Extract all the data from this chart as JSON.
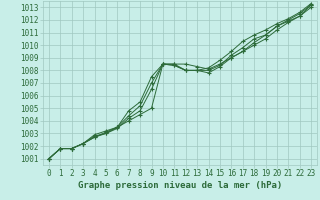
{
  "title": "Graphe pression niveau de la mer (hPa)",
  "bg_color": "#c8eee8",
  "grid_color": "#a0c8c0",
  "line_color": "#2d6b3a",
  "ylim": [
    1000.5,
    1013.5
  ],
  "xlim": [
    -0.5,
    23.5
  ],
  "yticks": [
    1001,
    1002,
    1003,
    1004,
    1005,
    1006,
    1007,
    1008,
    1009,
    1010,
    1011,
    1012,
    1013
  ],
  "xticks": [
    0,
    1,
    2,
    3,
    4,
    5,
    6,
    7,
    8,
    9,
    10,
    11,
    12,
    13,
    14,
    15,
    16,
    17,
    18,
    19,
    20,
    21,
    22,
    23
  ],
  "series": [
    [
      1001.0,
      1001.8,
      1001.8,
      1002.2,
      1002.8,
      1003.0,
      1003.5,
      1004.0,
      1004.5,
      1005.0,
      1008.5,
      1008.5,
      1008.5,
      1008.3,
      1008.1,
      1008.5,
      1009.0,
      1009.5,
      1010.0,
      1010.5,
      1011.2,
      1011.8,
      1012.3,
      1013.2
    ],
    [
      1001.0,
      1001.8,
      1001.8,
      1002.2,
      1002.7,
      1003.0,
      1003.4,
      1004.2,
      1004.8,
      1006.5,
      1008.5,
      1008.5,
      1008.0,
      1008.0,
      1007.8,
      1008.3,
      1009.0,
      1009.5,
      1010.2,
      1010.8,
      1011.5,
      1011.9,
      1012.3,
      1013.0
    ],
    [
      1001.0,
      1001.8,
      1001.8,
      1002.2,
      1002.7,
      1003.1,
      1003.5,
      1004.4,
      1005.2,
      1007.0,
      1008.5,
      1008.4,
      1008.0,
      1008.0,
      1008.0,
      1008.4,
      1009.2,
      1009.8,
      1010.5,
      1010.8,
      1011.5,
      1012.0,
      1012.5,
      1013.2
    ],
    [
      1001.0,
      1001.8,
      1001.8,
      1002.2,
      1002.9,
      1003.2,
      1003.5,
      1004.8,
      1005.5,
      1007.5,
      1008.5,
      1008.4,
      1008.0,
      1008.0,
      1008.2,
      1008.8,
      1009.5,
      1010.3,
      1010.8,
      1011.2,
      1011.7,
      1012.1,
      1012.6,
      1013.3
    ]
  ]
}
